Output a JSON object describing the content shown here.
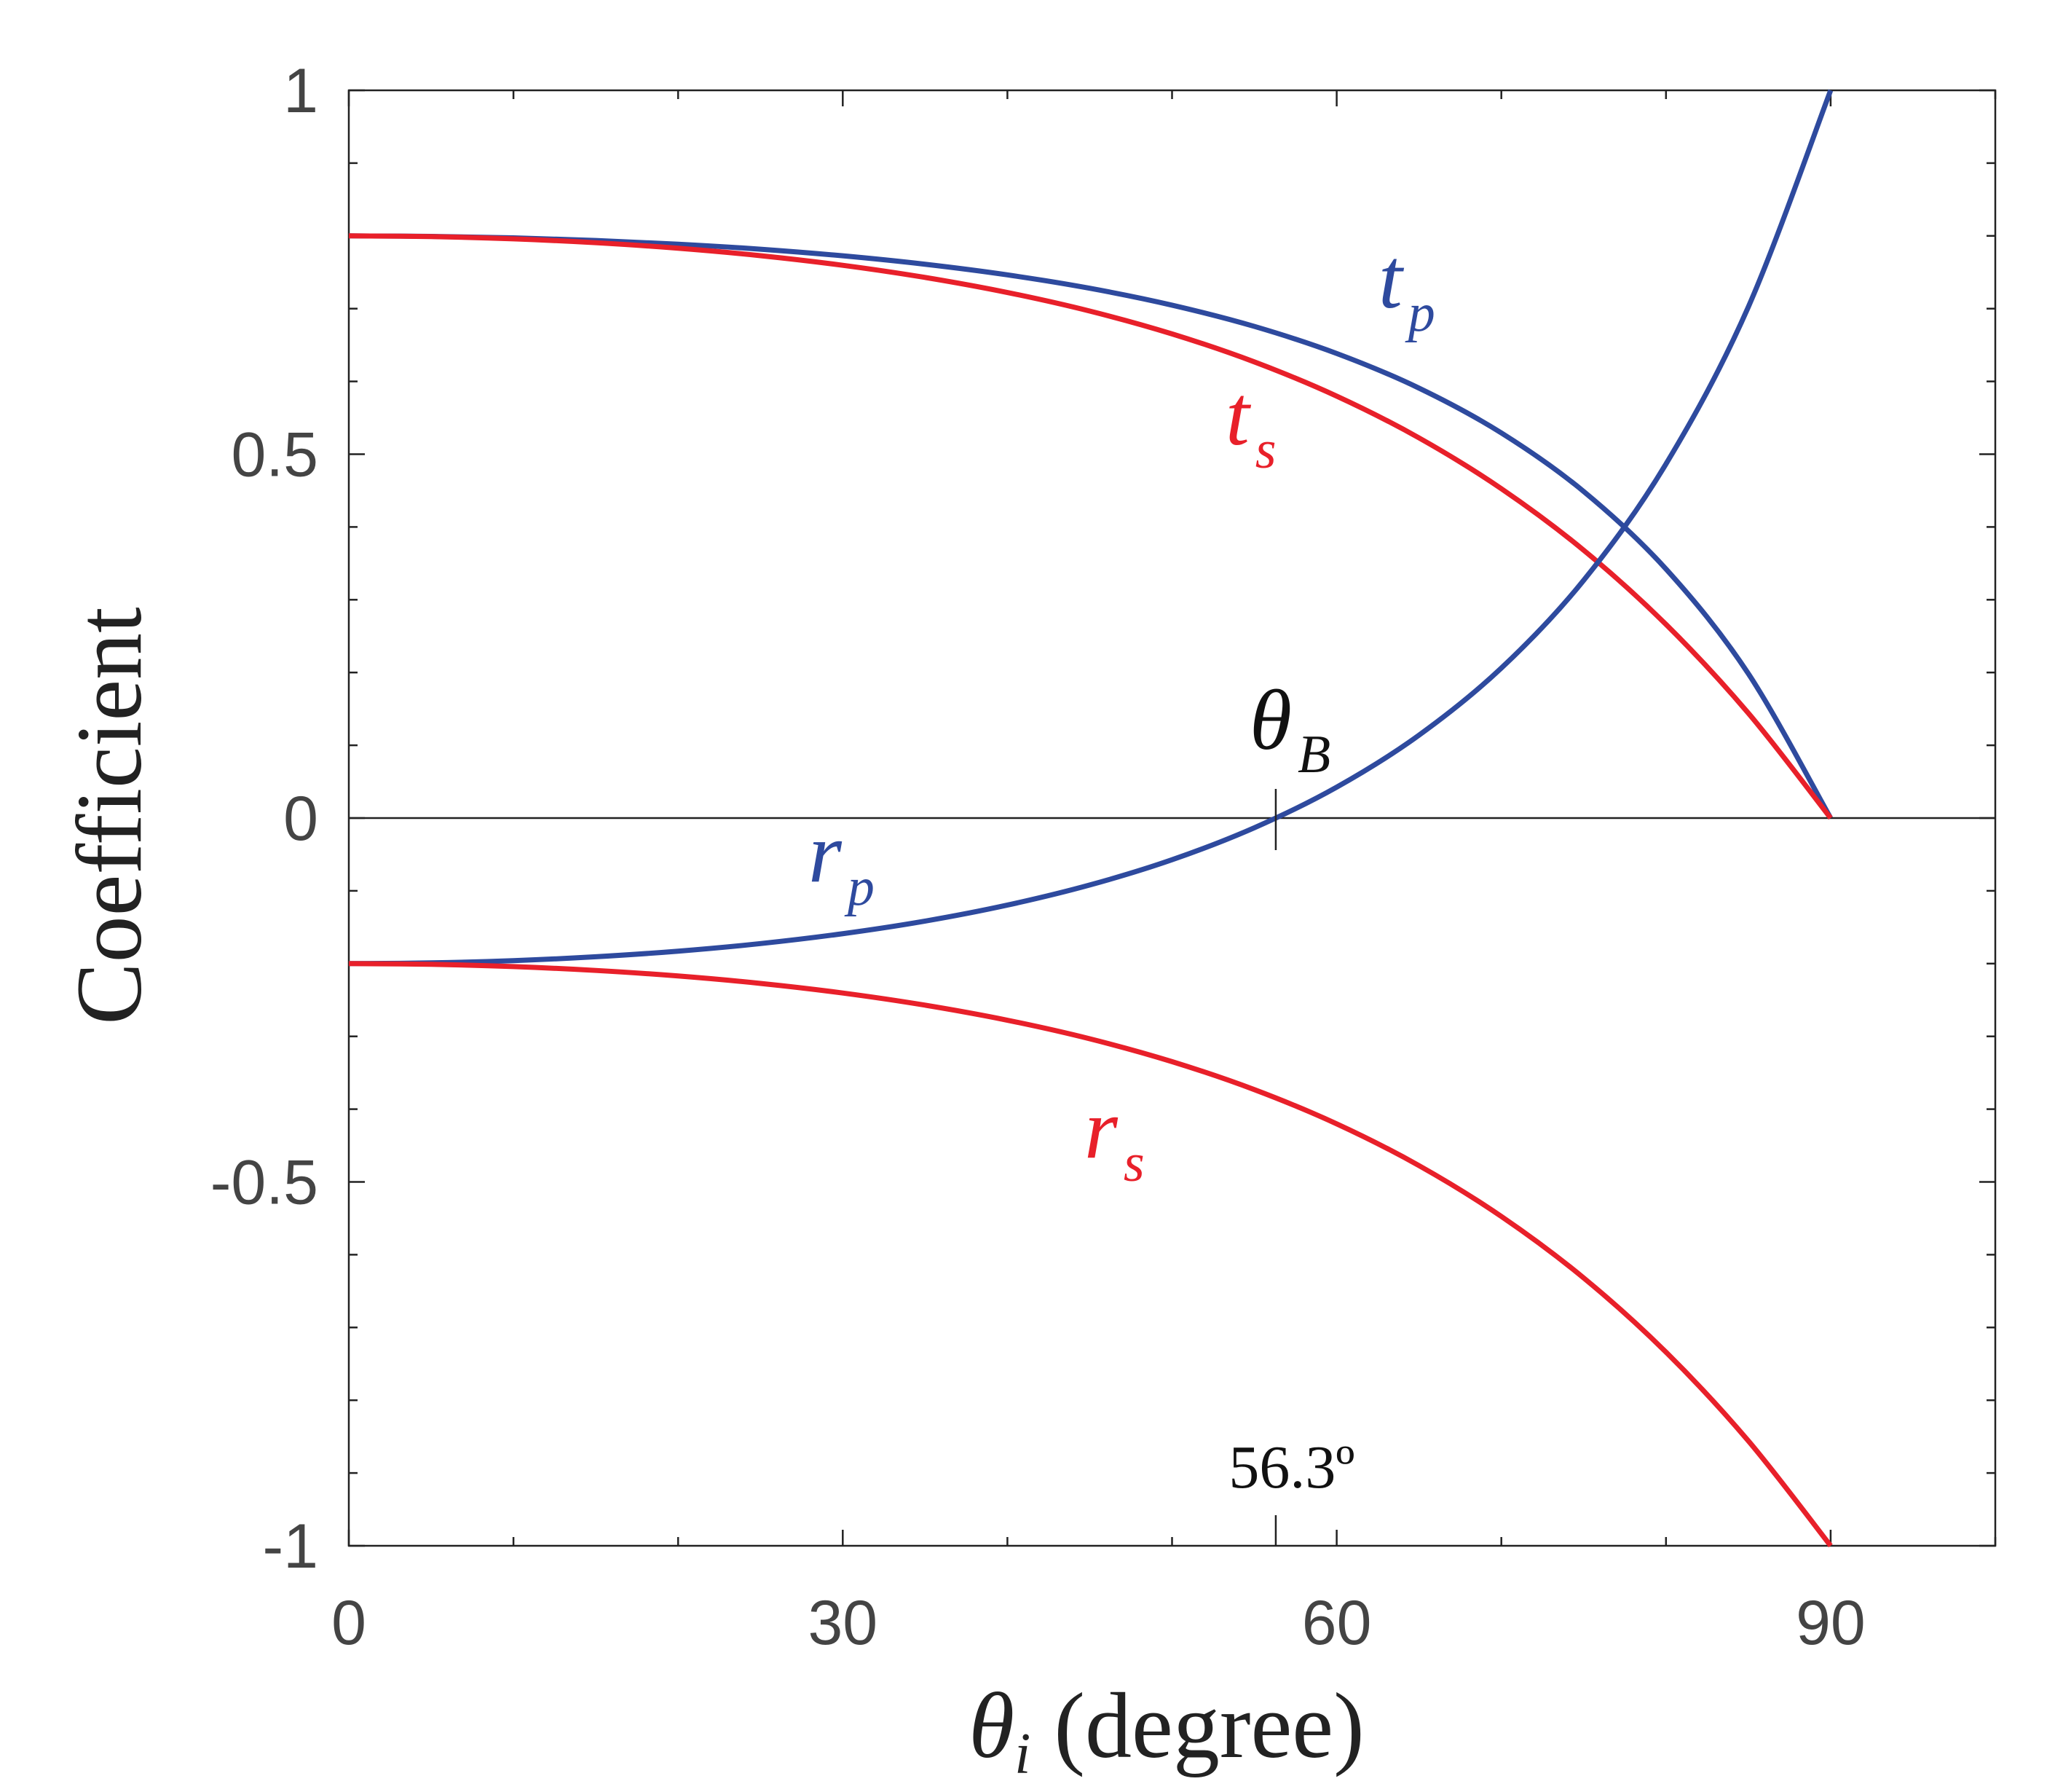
{
  "chart_data": {
    "type": "line",
    "x_label": {
      "main": "θ",
      "sub": "i",
      "rest": " (degree)"
    },
    "y_label": "Coefficient",
    "x": [
      0,
      5,
      10,
      15,
      20,
      25,
      30,
      35,
      40,
      45,
      50,
      55,
      60,
      65,
      70,
      75,
      80,
      85,
      90
    ],
    "series": [
      {
        "label": {
          "main": "t",
          "sub": "p"
        },
        "color": "#2e4a9e",
        "values": [
          0.8,
          0.7993,
          0.7973,
          0.7937,
          0.7886,
          0.7817,
          0.7726,
          0.761,
          0.7464,
          0.728,
          0.7048,
          0.6756,
          0.6384,
          0.5908,
          0.5292,
          0.4488,
          0.3422,
          0.1985,
          0
        ]
      },
      {
        "label": {
          "main": "t",
          "sub": "s"
        },
        "color": "#e8202a",
        "values": [
          0.8,
          0.799,
          0.7959,
          0.7906,
          0.783,
          0.7728,
          0.7596,
          0.7429,
          0.7222,
          0.6967,
          0.6653,
          0.6268,
          0.5798,
          0.5224,
          0.4526,
          0.3681,
          0.2661,
          0.1442,
          0
        ]
      },
      {
        "label": {
          "main": "r",
          "sub": "p"
        },
        "color": "#2e4a9e",
        "values": [
          -0.2,
          -0.199,
          -0.1959,
          -0.1906,
          -0.1829,
          -0.1725,
          -0.1589,
          -0.1416,
          -0.1196,
          -0.092,
          -0.0573,
          -0.0133,
          0.0425,
          0.1139,
          0.2061,
          0.3267,
          0.4866,
          0.7023,
          1
        ]
      },
      {
        "label": {
          "main": "r",
          "sub": "s"
        },
        "color": "#e8202a",
        "values": [
          -0.2,
          -0.201,
          -0.2041,
          -0.2094,
          -0.217,
          -0.2272,
          -0.2404,
          -0.2571,
          -0.2778,
          -0.3033,
          -0.3347,
          -0.3732,
          -0.4202,
          -0.4776,
          -0.5474,
          -0.6319,
          -0.7339,
          -0.8558,
          -1
        ]
      }
    ],
    "brewster": {
      "label": {
        "main": "θ",
        "sub": "B"
      },
      "angle": {
        "value": 56.3,
        "label": "56.3º"
      }
    },
    "xlim": [
      0,
      100
    ],
    "ylim": [
      -1,
      1
    ],
    "xticks": [
      0,
      30,
      60,
      90
    ],
    "yticks": [
      -1,
      -0.5,
      0,
      0.5,
      1
    ],
    "xminorticks": [
      10,
      20,
      40,
      50,
      70,
      80,
      100
    ],
    "yminorticks": [
      -0.9,
      -0.8,
      -0.7,
      -0.6,
      -0.4,
      -0.3,
      -0.2,
      -0.1,
      0.1,
      0.2,
      0.3,
      0.4,
      0.6,
      0.7,
      0.8,
      0.9
    ],
    "zero_line": true
  }
}
